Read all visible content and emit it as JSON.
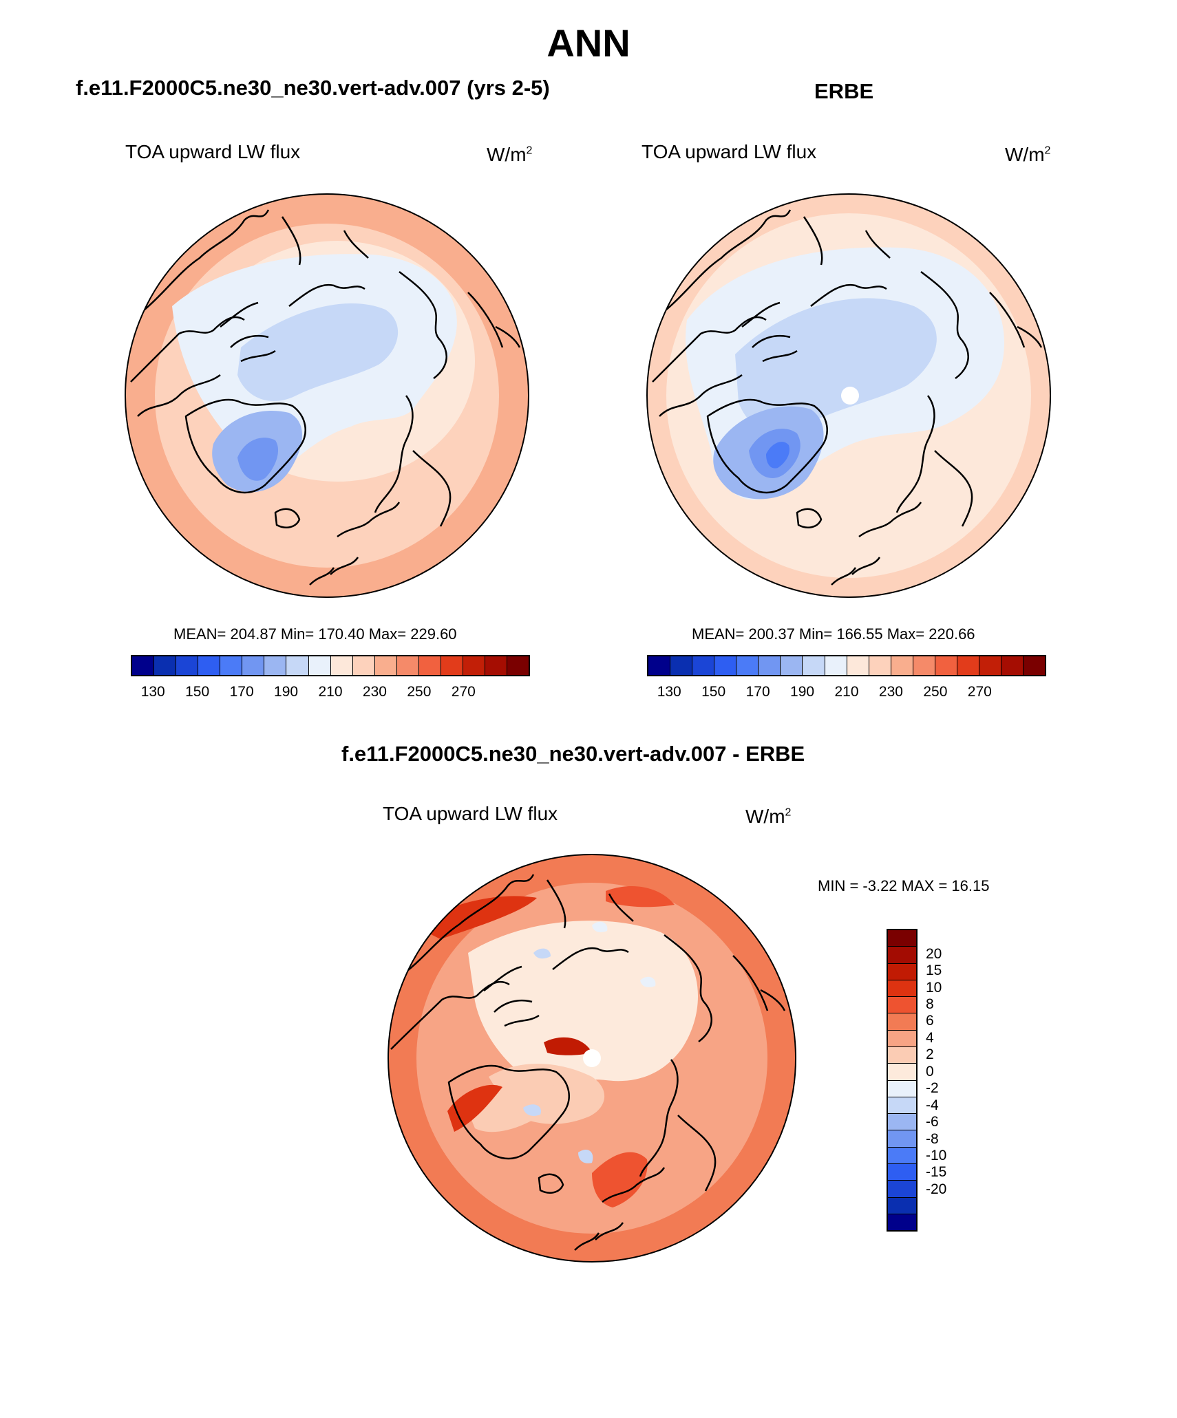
{
  "figure": {
    "title": "ANN"
  },
  "panels": {
    "model": {
      "title": "f.e11.F2000C5.ne30_ne30.vert-adv.007 (yrs 2-5)",
      "variable": "TOA upward LW flux",
      "units_base": "W/m",
      "units_exp": "2",
      "stats": "MEAN= 204.87  Min= 170.40  Max= 229.60"
    },
    "obs": {
      "title": "ERBE",
      "variable": "TOA upward LW flux",
      "units_base": "W/m",
      "units_exp": "2",
      "stats": "MEAN= 200.37  Min= 166.55  Max= 220.66"
    },
    "diff": {
      "title": "f.e11.F2000C5.ne30_ne30.vert-adv.007 - ERBE",
      "variable": "TOA upward LW flux",
      "units_base": "W/m",
      "units_exp": "2",
      "stats": "MIN =  -3.22 MAX =  16.15"
    }
  },
  "colorbars": {
    "absolute": {
      "colors": [
        "#00008b",
        "#0a2fb0",
        "#1b45d6",
        "#2e5ef2",
        "#4b7bf7",
        "#7196f2",
        "#9bb6f2",
        "#c6d8f7",
        "#e9f1fb",
        "#fde8da",
        "#fdd2bc",
        "#f9ae8e",
        "#f58a69",
        "#f1613f",
        "#e23c1b",
        "#c21f07",
        "#a50d02",
        "#7a0000"
      ],
      "tick_labels": [
        "130",
        "150",
        "170",
        "190",
        "210",
        "230",
        "250",
        "270"
      ]
    },
    "difference": {
      "colors": [
        "#7a0000",
        "#a30c02",
        "#c11b03",
        "#de3311",
        "#ee5330",
        "#f27b54",
        "#f7a485",
        "#fbccb4",
        "#fdeadc",
        "#e9f1fb",
        "#c6d8f7",
        "#9bb6f2",
        "#7196f2",
        "#4b7bf7",
        "#2e5ef2",
        "#1b45d6",
        "#0a2fb0",
        "#00008b"
      ],
      "tick_labels": [
        "20",
        "15",
        "10",
        "8",
        "6",
        "4",
        "2",
        "0",
        "-2",
        "-4",
        "-6",
        "-8",
        "-10",
        "-15",
        "-20"
      ]
    }
  },
  "colors": {
    "land_outline": "#000000",
    "pole_hole": "#ffffff"
  }
}
